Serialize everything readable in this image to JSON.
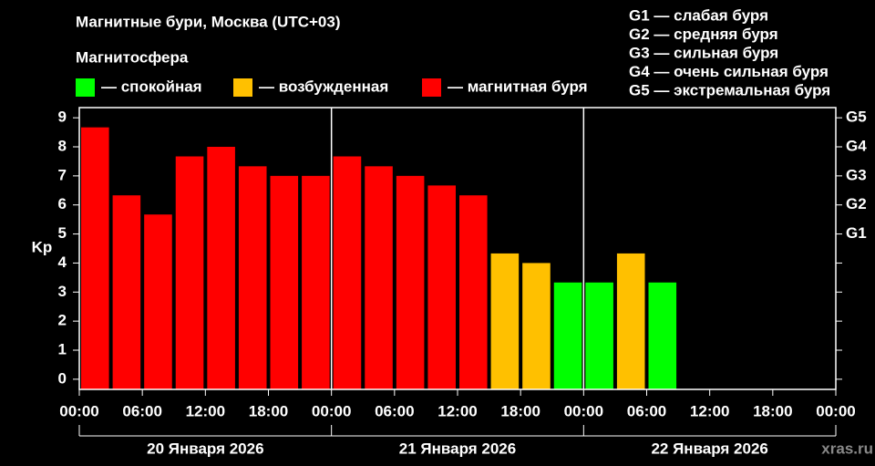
{
  "chart_data": {
    "type": "bar",
    "title": "Магнитные бури, Москва (UTC+03)",
    "subtitle": "Магнитосфера",
    "y_label": "Kp",
    "legend": [
      {
        "label": "— спокойная",
        "color": "#00ff00"
      },
      {
        "label": "— возбужденная",
        "color": "#ffc000"
      },
      {
        "label": "— магнитная буря",
        "color": "#ff0000"
      }
    ],
    "storm_scale": [
      "G1 — слабая буря",
      "G2 — средняя буря",
      "G3 — сильная буря",
      "G4 — очень сильная буря",
      "G5 — экстремальная буря"
    ],
    "x": [
      0,
      3,
      6,
      9,
      12,
      15,
      18,
      21,
      24,
      27,
      30,
      33,
      36,
      39,
      42,
      45,
      48,
      51,
      54
    ],
    "values": [
      8.67,
      6.33,
      5.67,
      7.67,
      8,
      7.33,
      7,
      7,
      7.67,
      7.33,
      7,
      6.67,
      6.33,
      4.33,
      4,
      3.33,
      3.33,
      4.33,
      3.33
    ],
    "colors": [
      "#ff0000",
      "#ff0000",
      "#ff0000",
      "#ff0000",
      "#ff0000",
      "#ff0000",
      "#ff0000",
      "#ff0000",
      "#ff0000",
      "#ff0000",
      "#ff0000",
      "#ff0000",
      "#ff0000",
      "#ffc000",
      "#ffc000",
      "#00ff00",
      "#00ff00",
      "#ffc000",
      "#00ff00"
    ],
    "xlim": [
      0,
      72
    ],
    "xticks": [
      {
        "value": 0,
        "label": "00:00"
      },
      {
        "value": 6,
        "label": "06:00"
      },
      {
        "value": 12,
        "label": "12:00"
      },
      {
        "value": 18,
        "label": "18:00"
      },
      {
        "value": 24,
        "label": "00:00"
      },
      {
        "value": 30,
        "label": "06:00"
      },
      {
        "value": 36,
        "label": "12:00"
      },
      {
        "value": 42,
        "label": "18:00"
      },
      {
        "value": 48,
        "label": "00:00"
      },
      {
        "value": 54,
        "label": "06:00"
      },
      {
        "value": 60,
        "label": "12:00"
      },
      {
        "value": 66,
        "label": "18:00"
      },
      {
        "value": 72,
        "label": "00:00"
      }
    ],
    "days": [
      "20 Января 2026",
      "21 Января 2026",
      "22 Января 2026"
    ],
    "ylim": [
      -0.35,
      9.35
    ],
    "yticks": [
      0,
      1,
      2,
      3,
      4,
      5,
      6,
      7,
      8,
      9
    ],
    "y2ticks": [
      {
        "value": 5,
        "label": "G1"
      },
      {
        "value": 6,
        "label": "G2"
      },
      {
        "value": 7,
        "label": "G3"
      },
      {
        "value": 8,
        "label": "G4"
      },
      {
        "value": 9,
        "label": "G5"
      }
    ],
    "watermark": "xras.ru"
  }
}
